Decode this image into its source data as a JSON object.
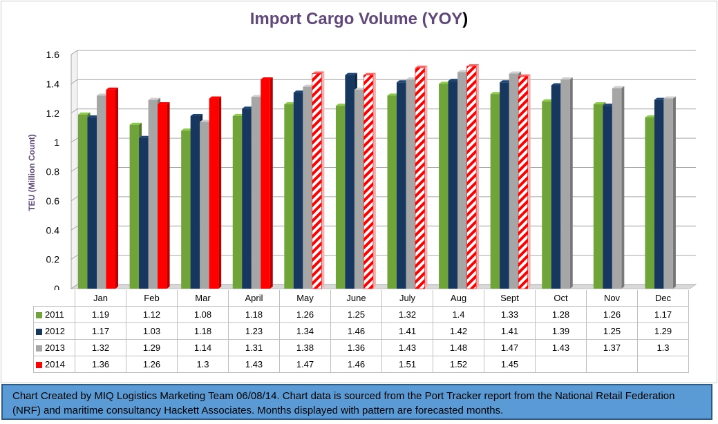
{
  "chart_data": {
    "type": "bar",
    "title": "Import Cargo Volume (YOY",
    "title_paren": ")",
    "ylabel": "TEU (Million Count)",
    "ylim": [
      0,
      1.6
    ],
    "yticks": [
      "0",
      "0.2",
      "0.4",
      "0.6",
      "0.8",
      "1",
      "1.2",
      "1.4",
      "1.6"
    ],
    "grid": true,
    "categories": [
      "Jan",
      "Feb",
      "Mar",
      "April",
      "May",
      "June",
      "July",
      "Aug",
      "Sept",
      "Oct",
      "Nov",
      "Dec"
    ],
    "forecast_start_index": 4,
    "series": [
      {
        "name": "2011",
        "color": "#70a33a",
        "values": [
          1.19,
          1.12,
          1.08,
          1.18,
          1.26,
          1.25,
          1.32,
          1.4,
          1.33,
          1.28,
          1.26,
          1.17
        ]
      },
      {
        "name": "2012",
        "color": "#17375e",
        "values": [
          1.17,
          1.03,
          1.18,
          1.23,
          1.34,
          1.46,
          1.41,
          1.42,
          1.41,
          1.39,
          1.25,
          1.29
        ]
      },
      {
        "name": "2013",
        "color": "#a6a6a6",
        "values": [
          1.32,
          1.29,
          1.14,
          1.31,
          1.38,
          1.36,
          1.43,
          1.48,
          1.47,
          1.43,
          1.37,
          1.3
        ]
      },
      {
        "name": "2014",
        "color": "#ff0000",
        "values": [
          1.36,
          1.26,
          1.3,
          1.43,
          1.47,
          1.46,
          1.51,
          1.52,
          1.45,
          null,
          null,
          null
        ]
      }
    ],
    "table_values": [
      [
        "1.19",
        "1.12",
        "1.08",
        "1.18",
        "1.26",
        "1.25",
        "1.32",
        "1.4",
        "1.33",
        "1.28",
        "1.26",
        "1.17"
      ],
      [
        "1.17",
        "1.03",
        "1.18",
        "1.23",
        "1.34",
        "1.46",
        "1.41",
        "1.42",
        "1.41",
        "1.39",
        "1.25",
        "1.29"
      ],
      [
        "1.32",
        "1.29",
        "1.14",
        "1.31",
        "1.38",
        "1.36",
        "1.43",
        "1.48",
        "1.47",
        "1.43",
        "1.37",
        "1.3"
      ],
      [
        "1.36",
        "1.26",
        "1.3",
        "1.43",
        "1.47",
        "1.46",
        "1.51",
        "1.52",
        "1.45",
        "",
        "",
        ""
      ]
    ]
  },
  "footnote": "Chart Created by MIQ Logistics Marketing Team 06/08/14.  Chart data is sourced from the Port Tracker report from the National Retail Federation (NRF) and maritime consultancy Hackett Associates. Months displayed with pattern are forecasted months."
}
